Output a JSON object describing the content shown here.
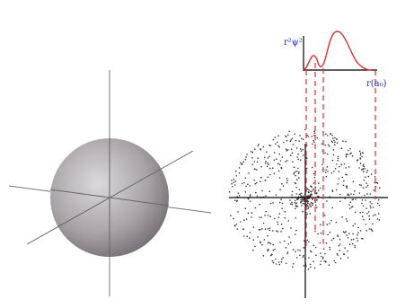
{
  "labels": {
    "y_axis": "r²ψ²",
    "x_axis": "r(a₀)"
  }
}
